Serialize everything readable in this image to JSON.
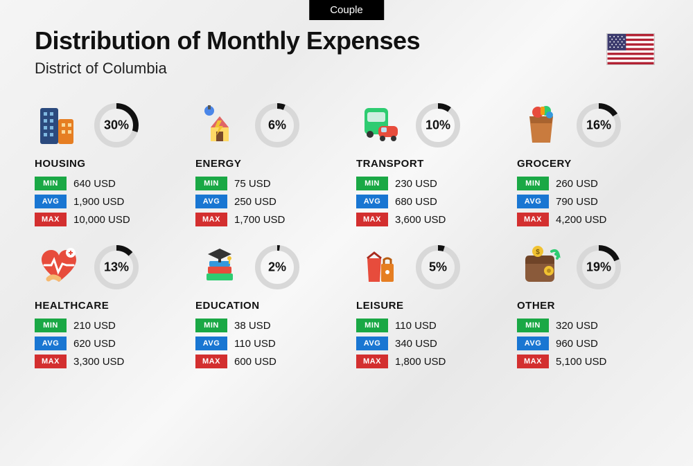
{
  "badge": "Couple",
  "title": "Distribution of Monthly Expenses",
  "subtitle": "District of Columbia",
  "colors": {
    "min": "#1aa845",
    "avg": "#1976d2",
    "max": "#d32f2f",
    "ring_bg": "#d8d8d8",
    "ring_fg": "#111111"
  },
  "labels": {
    "min": "MIN",
    "avg": "AVG",
    "max": "MAX"
  },
  "currency": "USD",
  "categories": [
    {
      "name": "HOUSING",
      "pct": 30,
      "min": "640",
      "avg": "1,900",
      "max": "10,000",
      "icon": "buildings"
    },
    {
      "name": "ENERGY",
      "pct": 6,
      "min": "75",
      "avg": "250",
      "max": "1,700",
      "icon": "energy"
    },
    {
      "name": "TRANSPORT",
      "pct": 10,
      "min": "230",
      "avg": "680",
      "max": "3,600",
      "icon": "transport"
    },
    {
      "name": "GROCERY",
      "pct": 16,
      "min": "260",
      "avg": "790",
      "max": "4,200",
      "icon": "grocery"
    },
    {
      "name": "HEALTHCARE",
      "pct": 13,
      "min": "210",
      "avg": "620",
      "max": "3,300",
      "icon": "healthcare"
    },
    {
      "name": "EDUCATION",
      "pct": 2,
      "min": "38",
      "avg": "110",
      "max": "600",
      "icon": "education"
    },
    {
      "name": "LEISURE",
      "pct": 5,
      "min": "110",
      "avg": "340",
      "max": "1,800",
      "icon": "leisure"
    },
    {
      "name": "OTHER",
      "pct": 19,
      "min": "320",
      "avg": "960",
      "max": "5,100",
      "icon": "other"
    }
  ]
}
